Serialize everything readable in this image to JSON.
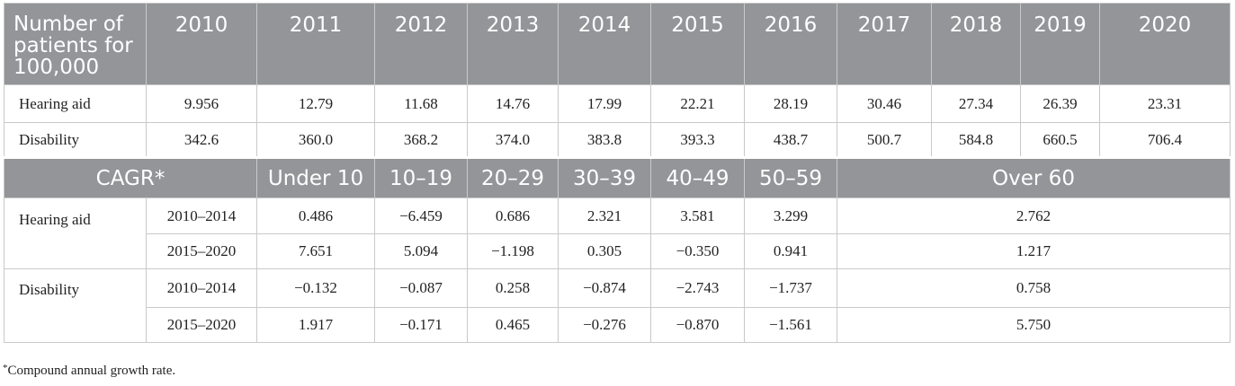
{
  "header": {
    "title": "Number of patients for 100,000",
    "years": [
      "2010",
      "2011",
      "2012",
      "2013",
      "2014",
      "2015",
      "2016",
      "2017",
      "2018",
      "2019",
      "2020"
    ]
  },
  "patients": [
    {
      "label": "Hearing aid",
      "values": [
        "9.956",
        "12.79",
        "11.68",
        "14.76",
        "17.99",
        "22.21",
        "28.19",
        "30.46",
        "27.34",
        "26.39",
        "23.31"
      ]
    },
    {
      "label": "Disability",
      "values": [
        "342.6",
        "360.0",
        "368.2",
        "374.0",
        "383.8",
        "393.3",
        "438.7",
        "500.7",
        "584.8",
        "660.5",
        "706.4"
      ]
    }
  ],
  "cagr_header": {
    "title": "CAGR*",
    "groups": [
      "Under 10",
      "10–19",
      "20–29",
      "30–39",
      "40–49",
      "50–59",
      "Over 60"
    ]
  },
  "cagr": [
    {
      "label": "Hearing aid",
      "rows": [
        {
          "period": "2010–2014",
          "values": [
            "0.486",
            "−6.459",
            "0.686",
            "2.321",
            "3.581",
            "3.299",
            "2.762"
          ]
        },
        {
          "period": "2015–2020",
          "values": [
            "7.651",
            "5.094",
            "−1.198",
            "0.305",
            "−0.350",
            "0.941",
            "1.217"
          ]
        }
      ]
    },
    {
      "label": "Disability",
      "rows": [
        {
          "period": "2010–2014",
          "values": [
            "−0.132",
            "−0.087",
            "0.258",
            "−0.874",
            "−2.743",
            "−1.737",
            "0.758"
          ]
        },
        {
          "period": "2015–2020",
          "values": [
            "1.917",
            "−0.171",
            "0.465",
            "−0.276",
            "−0.870",
            "−1.561",
            "5.750"
          ]
        }
      ]
    }
  ],
  "footnote": {
    "mark": "*",
    "text": "Compound annual growth rate."
  }
}
